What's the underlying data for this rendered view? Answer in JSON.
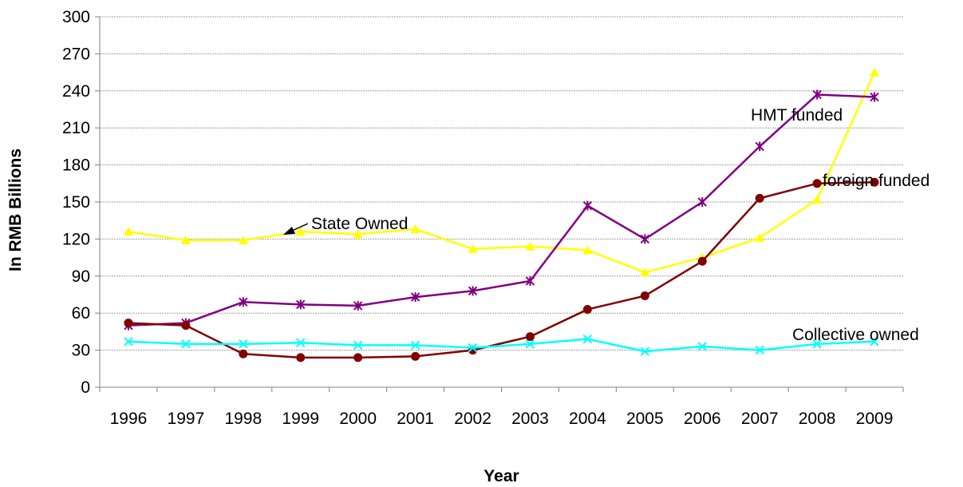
{
  "chart_data": {
    "type": "line",
    "title": "",
    "xlabel": "Year",
    "ylabel": "In RMB Billions",
    "ylim": [
      0,
      300
    ],
    "yticks": [
      0,
      30,
      60,
      90,
      120,
      150,
      180,
      210,
      240,
      270,
      300
    ],
    "grid": "horizontal",
    "legend": "none",
    "categories": [
      "1996",
      "1997",
      "1998",
      "1999",
      "2000",
      "2001",
      "2002",
      "2003",
      "2004",
      "2005",
      "2006",
      "2007",
      "2008",
      "2009"
    ],
    "series": [
      {
        "color": "#FFFF00",
        "marker": "triangle",
        "values": [
          126,
          119,
          119,
          126,
          124,
          128,
          112,
          114,
          111,
          93,
          105,
          121,
          152,
          255
        ]
      },
      {
        "color": "#800080",
        "marker": "star",
        "values": [
          50,
          52,
          69,
          67,
          66,
          73,
          78,
          86,
          147,
          120,
          150,
          195,
          237,
          235
        ]
      },
      {
        "color": "#800000",
        "marker": "circle",
        "values": [
          52,
          50,
          27,
          24,
          24,
          25,
          30,
          41,
          63,
          74,
          102,
          153,
          165,
          166
        ]
      },
      {
        "color": "#00FFFF",
        "marker": "x",
        "values": [
          37,
          35,
          35,
          36,
          34,
          34,
          32,
          35,
          39,
          29,
          33,
          30,
          35,
          37
        ]
      }
    ],
    "annotations": [
      {
        "text": "State Owned",
        "arrow": true
      },
      {
        "text": "HMT funded"
      },
      {
        "text": "foreign funded"
      },
      {
        "text": "Collective owned"
      }
    ]
  }
}
